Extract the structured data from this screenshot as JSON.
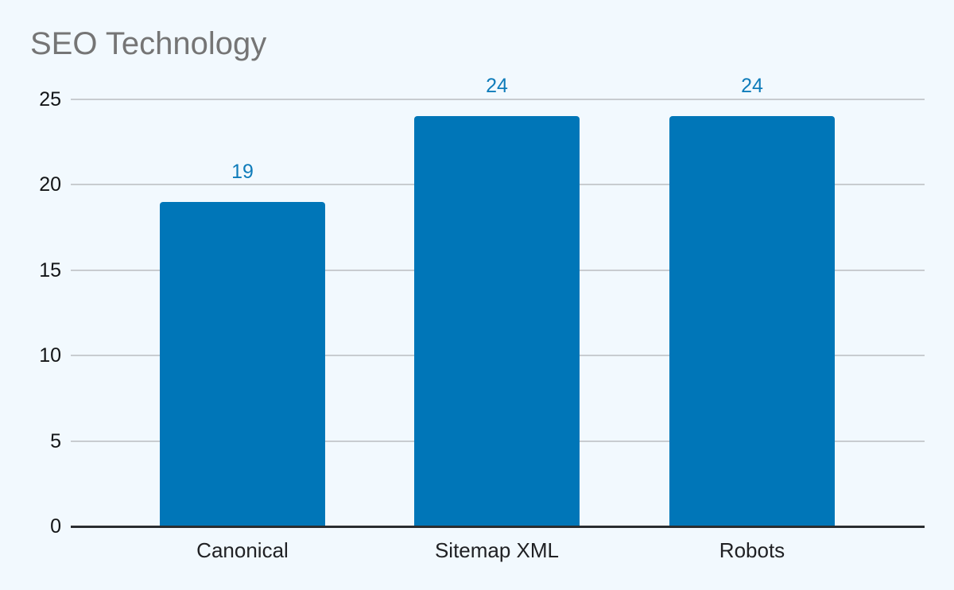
{
  "chart_data": {
    "type": "bar",
    "title": "SEO Technology",
    "categories": [
      "Canonical",
      "Sitemap XML",
      "Robots"
    ],
    "values": [
      19,
      24,
      24
    ],
    "xlabel": "",
    "ylabel": "",
    "ylim": [
      0,
      25
    ],
    "yticks": [
      0,
      5,
      10,
      15,
      20,
      25
    ],
    "grid": true,
    "legend": "none",
    "bar_color": "#0076B8",
    "annotation_color": "#0F7CBA",
    "background_color": "#F2F9FE",
    "gridline_color": "#C8CCD0",
    "axis_color": "#2A2D30",
    "title_color": "#757575"
  }
}
